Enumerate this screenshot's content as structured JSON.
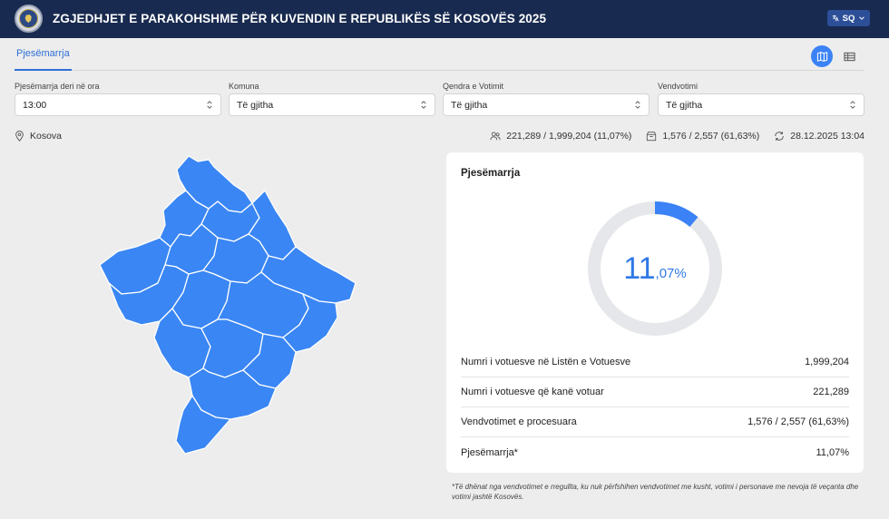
{
  "header": {
    "title": "ZGJEDHJET E PARAKOHSHME PËR KUVENDIN E REPUBLIKËS SË KOSOVËS 2025",
    "language": "SQ",
    "logo_icon": "cec-seal-logo"
  },
  "tabs": [
    {
      "label": "Pjesëmarrja",
      "active": true
    }
  ],
  "view_toggle": {
    "map_icon": "map-icon",
    "table_icon": "table-icon",
    "active": "map"
  },
  "filters": [
    {
      "label": "Pjesëmarrja deri në ora",
      "value": "13:00"
    },
    {
      "label": "Komuna",
      "value": "Të gjitha"
    },
    {
      "label": "Qendra e Votimit",
      "value": "Të gjitha"
    },
    {
      "label": "Vendvotimi",
      "value": "Të gjitha"
    }
  ],
  "location": "Kosova",
  "stats": {
    "voters": "221,289 / 1,999,204 (11,07%)",
    "stations": "1,576 / 2,557 (61,63%)",
    "updated": "28.12.2025 13:04"
  },
  "card": {
    "title": "Pjesëmarrja",
    "percent_int": "11",
    "percent_dec": ",07%",
    "fraction": 0.1107,
    "rows": [
      {
        "label": "Numri i votuesve në Listën e Votuesve",
        "value": "1,999,204"
      },
      {
        "label": "Numri i votuesve që kanë votuar",
        "value": "221,289"
      },
      {
        "label": "Vendvotimet e procesuara",
        "value": "1,576 / 2,557 (61,63%)"
      },
      {
        "label": "Pjesëmarrja*",
        "value": "11,07%"
      }
    ]
  },
  "footnote": "*Të dhënat nga vendvotimet e rregullta, ku nuk përfshihen vendvotimet me kusht, votimi i personave me nevoja të veçanta dhe votimi jashtë Kosovës.",
  "colors": {
    "header": "#182a4f",
    "accent": "#3b82f6",
    "map_fill": "#3a86f4",
    "track": "#e6e7ea"
  }
}
